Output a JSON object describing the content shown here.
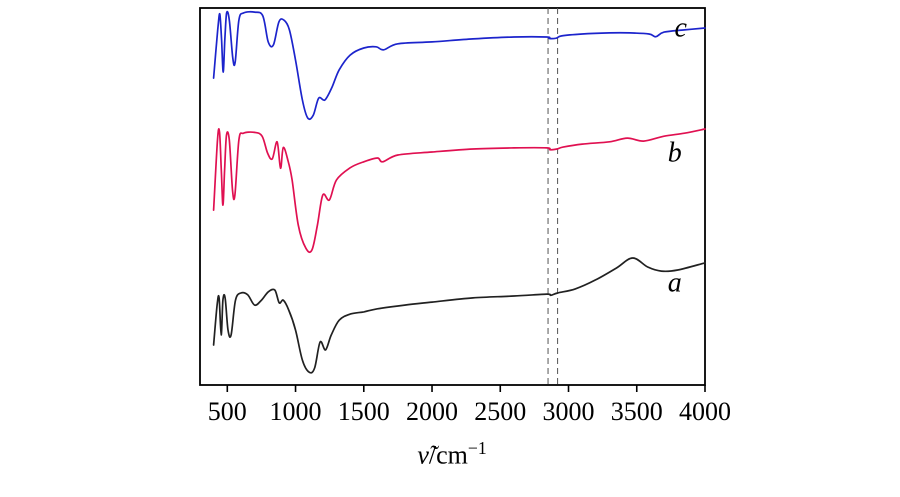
{
  "chart_data": {
    "type": "line",
    "title": "",
    "xlabel": "ν̃/cm⁻¹",
    "xlabel_parts": {
      "nu": "ν̃",
      "slash_unit": "/cm",
      "exponent": "−1"
    },
    "ylabel": "",
    "y_scale_note": "transmittance, arbitrary units normalized 0–100 (no y ticks shown)",
    "xlim": [
      300,
      4000
    ],
    "x_ticks": [
      "500",
      "1000",
      "1500",
      "2000",
      "2500",
      "3000",
      "3500",
      "4000"
    ],
    "x_tick_values": [
      500,
      1000,
      1500,
      2000,
      2500,
      3000,
      3500,
      4000
    ],
    "grid": false,
    "marker_lines_cm1": [
      2850,
      2920
    ],
    "frame_color": "#000000",
    "series": [
      {
        "name": "a",
        "color": "#212121",
        "label_pos": {
          "fx": 0.94,
          "fy": 0.735
        },
        "points": [
          [
            400,
            10.6
          ],
          [
            425,
            21.2
          ],
          [
            440,
            23.1
          ],
          [
            455,
            13.3
          ],
          [
            468,
            22.5
          ],
          [
            484,
            23.1
          ],
          [
            505,
            14.6
          ],
          [
            528,
            13.3
          ],
          [
            560,
            22.5
          ],
          [
            600,
            24.4
          ],
          [
            650,
            23.9
          ],
          [
            700,
            21.2
          ],
          [
            750,
            22.5
          ],
          [
            800,
            24.7
          ],
          [
            848,
            25.2
          ],
          [
            880,
            21.8
          ],
          [
            910,
            22.5
          ],
          [
            950,
            19.9
          ],
          [
            1000,
            14.6
          ],
          [
            1050,
            6.6
          ],
          [
            1100,
            3.4
          ],
          [
            1140,
            4.5
          ],
          [
            1180,
            11.4
          ],
          [
            1220,
            9.3
          ],
          [
            1262,
            13.3
          ],
          [
            1320,
            17.2
          ],
          [
            1400,
            18.8
          ],
          [
            1500,
            19.4
          ],
          [
            1600,
            20.2
          ],
          [
            1800,
            21.2
          ],
          [
            2000,
            22.0
          ],
          [
            2300,
            23.1
          ],
          [
            2600,
            23.6
          ],
          [
            2840,
            24.1
          ],
          [
            2870,
            23.8
          ],
          [
            2920,
            24.4
          ],
          [
            3050,
            25.5
          ],
          [
            3200,
            27.9
          ],
          [
            3350,
            31.0
          ],
          [
            3470,
            33.7
          ],
          [
            3580,
            31.3
          ],
          [
            3680,
            30.2
          ],
          [
            3800,
            30.5
          ],
          [
            4000,
            32.4
          ]
        ]
      },
      {
        "name": "b",
        "color": "#e01051",
        "label_pos": {
          "fx": 0.94,
          "fy": 0.39
        },
        "points": [
          [
            400,
            46.4
          ],
          [
            428,
            65.0
          ],
          [
            443,
            67.1
          ],
          [
            456,
            57.0
          ],
          [
            468,
            47.7
          ],
          [
            480,
            57.0
          ],
          [
            494,
            66.3
          ],
          [
            515,
            65.0
          ],
          [
            538,
            51.7
          ],
          [
            556,
            50.4
          ],
          [
            585,
            65.0
          ],
          [
            618,
            66.8
          ],
          [
            700,
            67.0
          ],
          [
            755,
            66.0
          ],
          [
            795,
            61.5
          ],
          [
            830,
            60.0
          ],
          [
            865,
            64.5
          ],
          [
            890,
            57.5
          ],
          [
            910,
            63.0
          ],
          [
            945,
            59.5
          ],
          [
            975,
            54.4
          ],
          [
            1020,
            42.4
          ],
          [
            1075,
            36.3
          ],
          [
            1120,
            35.8
          ],
          [
            1160,
            42.4
          ],
          [
            1200,
            50.4
          ],
          [
            1248,
            49.1
          ],
          [
            1300,
            54.4
          ],
          [
            1400,
            57.6
          ],
          [
            1500,
            59.2
          ],
          [
            1600,
            60.2
          ],
          [
            1638,
            59.2
          ],
          [
            1750,
            61.0
          ],
          [
            2000,
            61.8
          ],
          [
            2300,
            62.6
          ],
          [
            2600,
            62.9
          ],
          [
            2840,
            62.9
          ],
          [
            2865,
            62.4
          ],
          [
            2915,
            62.6
          ],
          [
            2960,
            63.1
          ],
          [
            3100,
            63.9
          ],
          [
            3300,
            64.5
          ],
          [
            3430,
            65.5
          ],
          [
            3550,
            64.7
          ],
          [
            3700,
            66.0
          ],
          [
            3850,
            66.8
          ],
          [
            4000,
            67.9
          ]
        ]
      },
      {
        "name": "c",
        "color": "#1c24cc",
        "label_pos": {
          "fx": 0.952,
          "fy": 0.058
        },
        "points": [
          [
            400,
            81.4
          ],
          [
            430,
            94.2
          ],
          [
            445,
            98.4
          ],
          [
            458,
            91.5
          ],
          [
            470,
            83.0
          ],
          [
            482,
            91.5
          ],
          [
            495,
            98.7
          ],
          [
            515,
            96.8
          ],
          [
            540,
            86.7
          ],
          [
            558,
            85.7
          ],
          [
            585,
            96.8
          ],
          [
            620,
            98.7
          ],
          [
            700,
            98.9
          ],
          [
            760,
            97.9
          ],
          [
            800,
            91.0
          ],
          [
            838,
            90.2
          ],
          [
            878,
            96.3
          ],
          [
            915,
            96.8
          ],
          [
            955,
            94.2
          ],
          [
            1000,
            86.2
          ],
          [
            1050,
            75.6
          ],
          [
            1090,
            70.8
          ],
          [
            1130,
            71.6
          ],
          [
            1170,
            76.1
          ],
          [
            1215,
            75.6
          ],
          [
            1265,
            78.8
          ],
          [
            1320,
            83.6
          ],
          [
            1400,
            87.5
          ],
          [
            1500,
            89.4
          ],
          [
            1590,
            89.7
          ],
          [
            1645,
            88.9
          ],
          [
            1750,
            90.5
          ],
          [
            2000,
            91.0
          ],
          [
            2300,
            91.8
          ],
          [
            2600,
            92.3
          ],
          [
            2840,
            92.3
          ],
          [
            2860,
            91.9
          ],
          [
            2910,
            92.0
          ],
          [
            2950,
            92.6
          ],
          [
            3100,
            93.1
          ],
          [
            3300,
            93.4
          ],
          [
            3450,
            93.4
          ],
          [
            3590,
            93.1
          ],
          [
            3640,
            92.4
          ],
          [
            3700,
            93.6
          ],
          [
            3850,
            94.2
          ],
          [
            4000,
            94.7
          ]
        ]
      }
    ]
  }
}
